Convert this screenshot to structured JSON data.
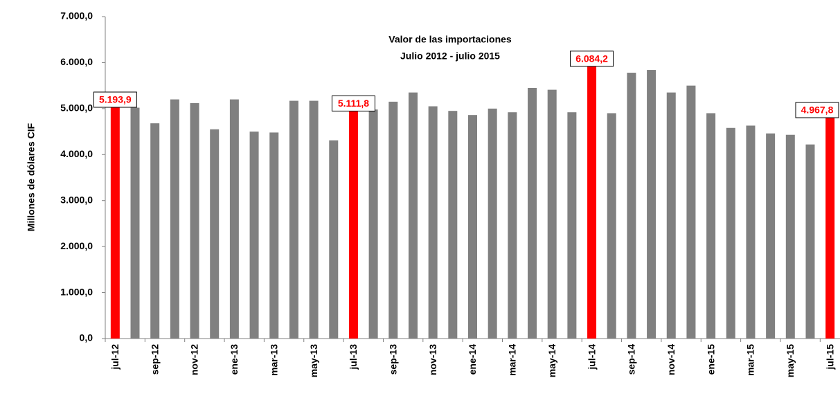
{
  "chart_data": {
    "type": "bar",
    "title": "Valor de las importaciones",
    "subtitle": "Julio 2012  - julio 2015",
    "y_label": "Millones de dólares CIF",
    "categories": [
      "jul-12",
      null,
      "sep-12",
      null,
      "nov-12",
      null,
      "ene-13",
      null,
      "mar-13",
      null,
      "may-13",
      null,
      "jul-13",
      null,
      "sep-13",
      null,
      "nov-13",
      null,
      "ene-14",
      null,
      "mar-14",
      null,
      "may-14",
      null,
      "jul-14",
      null,
      "sep-14",
      null,
      "nov-14",
      null,
      "ene-15",
      null,
      "mar-15",
      null,
      "may-15",
      null,
      "jul-15"
    ],
    "values": [
      5193.9,
      5020,
      4680,
      5200,
      5120,
      4550,
      5200,
      4500,
      4480,
      5170,
      5170,
      4310,
      5111.8,
      4980,
      5150,
      5350,
      5050,
      4950,
      4860,
      5000,
      4920,
      5450,
      5410,
      4920,
      6084.2,
      4900,
      5780,
      5840,
      5350,
      5500,
      4900,
      4580,
      4630,
      4460,
      4430,
      4220,
      4967.8
    ],
    "value_labels": [
      "5.193,9",
      null,
      null,
      null,
      null,
      null,
      null,
      null,
      null,
      null,
      null,
      null,
      "5.111,8",
      null,
      null,
      null,
      null,
      null,
      null,
      null,
      null,
      null,
      null,
      null,
      "6.084,2",
      null,
      null,
      null,
      null,
      null,
      null,
      null,
      null,
      null,
      null,
      null,
      "4.967,8"
    ],
    "colors": [
      "#ff0000",
      "#808080",
      "#808080",
      "#808080",
      "#808080",
      "#808080",
      "#808080",
      "#808080",
      "#808080",
      "#808080",
      "#808080",
      "#808080",
      "#ff0000",
      "#808080",
      "#808080",
      "#808080",
      "#808080",
      "#808080",
      "#808080",
      "#808080",
      "#808080",
      "#808080",
      "#808080",
      "#808080",
      "#ff0000",
      "#808080",
      "#808080",
      "#808080",
      "#808080",
      "#808080",
      "#808080",
      "#808080",
      "#808080",
      "#808080",
      "#808080",
      "#808080",
      "#ff0000"
    ],
    "ylim": [
      0,
      7000
    ],
    "yticks": [
      {
        "value": 0,
        "label": "0,0"
      },
      {
        "value": 1000,
        "label": "1.000,0"
      },
      {
        "value": 2000,
        "label": "2.000,0"
      },
      {
        "value": 3000,
        "label": "3.000,0"
      },
      {
        "value": 4000,
        "label": "4.000,0"
      },
      {
        "value": 5000,
        "label": "5.000,0"
      },
      {
        "value": 6000,
        "label": "6.000,0"
      },
      {
        "value": 7000,
        "label": "7.000,0"
      }
    ],
    "grid": false
  }
}
